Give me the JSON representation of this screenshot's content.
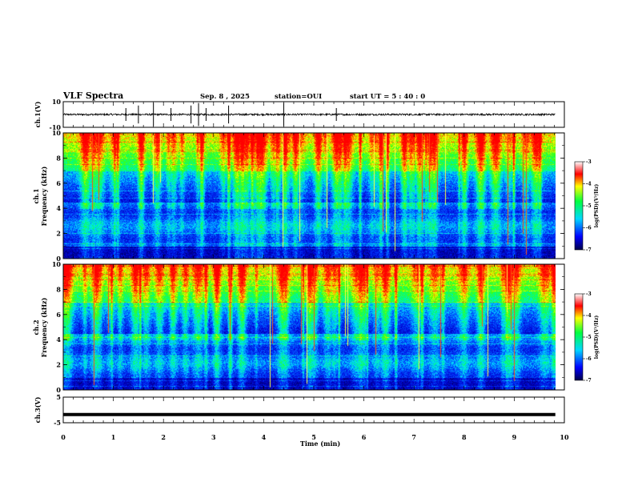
{
  "header": {
    "title": "VLF Spectra",
    "date": "Sep. 8 , 2025",
    "station": "station=OUI",
    "start_ut": "start  UT =   5 : 40 : 0"
  },
  "chart_data": [
    {
      "type": "line",
      "name": "ch1-waveform",
      "ylabel": "ch.1(V)",
      "ylim": [
        -10,
        10
      ],
      "y_tick_labels": [
        "10",
        "-10"
      ],
      "baseline": 0,
      "spike_times_min": [
        1.25,
        1.5,
        1.8,
        2.15,
        2.55,
        2.7,
        2.85,
        3.3,
        4.4,
        5.45
      ]
    },
    {
      "type": "heatmap",
      "name": "ch1-spectrogram",
      "ylabel_top": "ch.1",
      "ylabel": "Frequency (kHz)",
      "ylim": [
        0,
        10
      ],
      "y_tick_labels": [
        "0",
        "2",
        "4",
        "6",
        "8",
        "10"
      ],
      "colorbar": {
        "label": "log(PSD)(V²/Hz)",
        "range": [
          -7,
          -3
        ],
        "ticks": [
          "-3",
          "-4",
          "-5",
          "-6",
          "-7"
        ]
      }
    },
    {
      "type": "heatmap",
      "name": "ch2-spectrogram",
      "ylabel_top": "ch.2",
      "ylabel": "Frequency (kHz)",
      "ylim": [
        0,
        10
      ],
      "y_tick_labels": [
        "0",
        "2",
        "4",
        "6",
        "8",
        "10"
      ],
      "colorbar": {
        "label": "log(PSD)(V²/Hz)",
        "range": [
          -7,
          -3
        ],
        "ticks": [
          "-3",
          "-4",
          "-5",
          "-6",
          "-7"
        ]
      }
    },
    {
      "type": "line",
      "name": "ch3-waveform",
      "ylabel": "ch.3(V)",
      "ylim": [
        -5,
        5
      ],
      "y_tick_labels": [
        "5",
        "-5"
      ],
      "value": -1.8
    }
  ],
  "x_axis": {
    "label": "Time (min)",
    "range": [
      0,
      10
    ],
    "data_end": 9.82,
    "tick_labels": [
      "0",
      "1",
      "2",
      "3",
      "4",
      "5",
      "6",
      "7",
      "8",
      "9",
      "10"
    ]
  },
  "colors": {
    "dark_blue": "#00008b",
    "blue": "#0000ff",
    "cyan": "#00e5ff",
    "green": "#00ff00",
    "yellow": "#ffff00",
    "red": "#ff0000",
    "black": "#000000"
  }
}
